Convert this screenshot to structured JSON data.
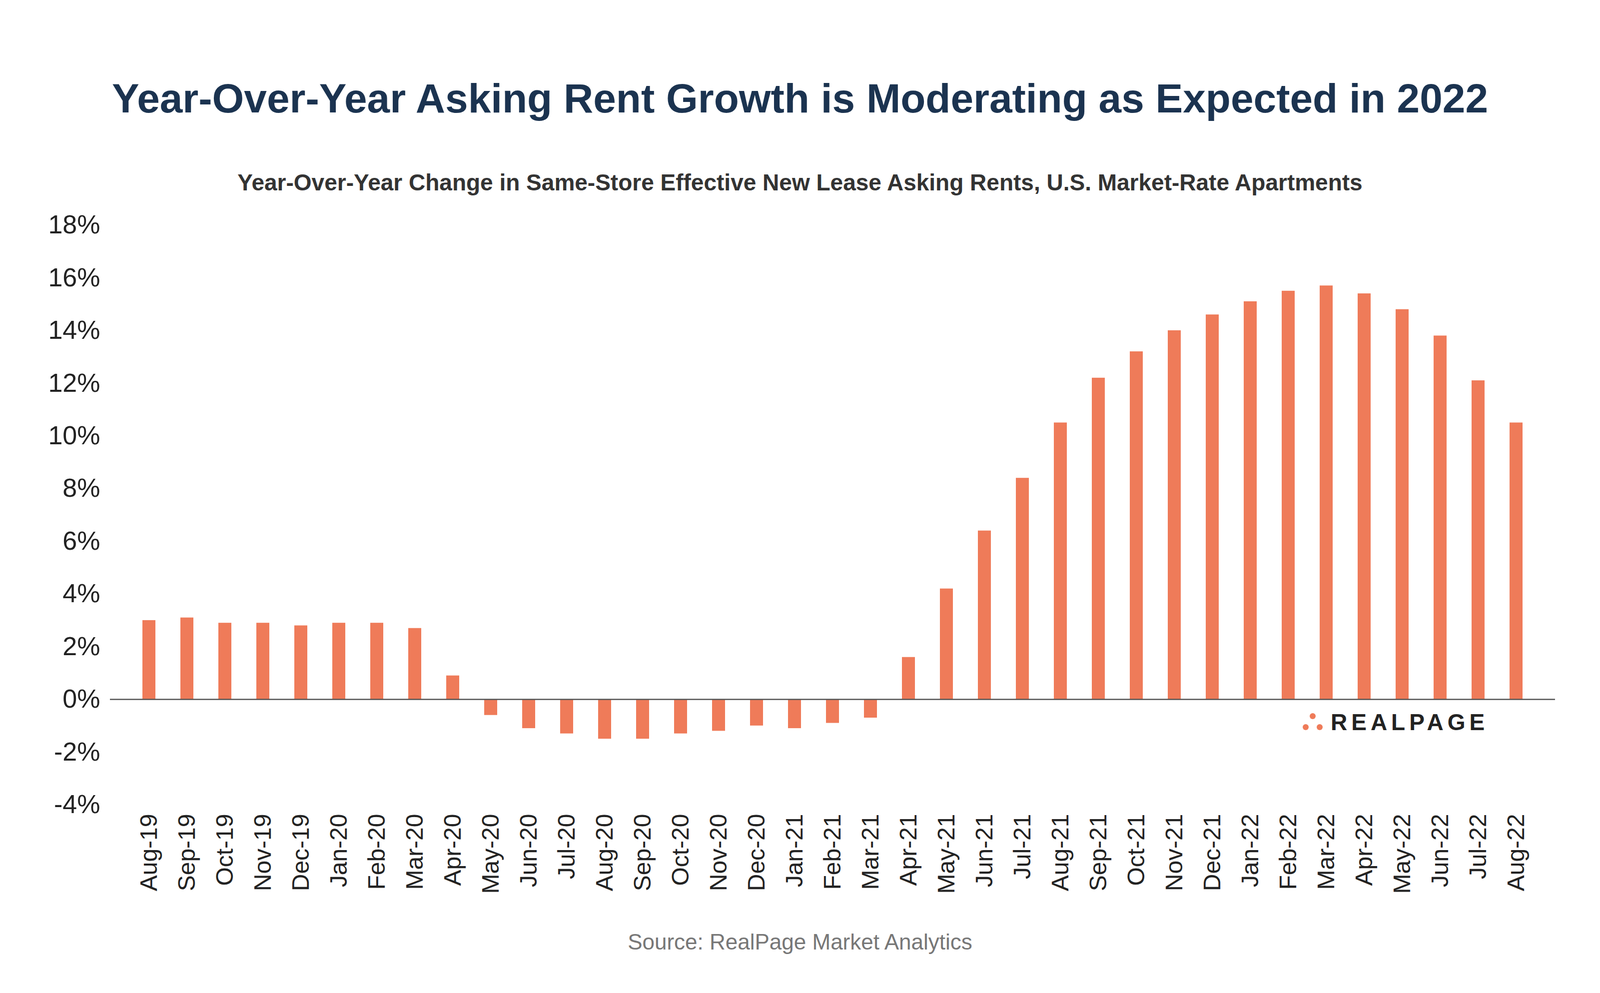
{
  "chart_data": {
    "type": "bar",
    "title": "Year-Over-Year Asking Rent Growth is Moderating as Expected in 2022",
    "subtitle": "Year-Over-Year Change in Same-Store Effective New Lease Asking Rents, U.S. Market-Rate Apartments",
    "source": "Source: RealPage Market Analytics",
    "annotations": [
      "REALPAGE"
    ],
    "categories": [
      "Aug-19",
      "Sep-19",
      "Oct-19",
      "Nov-19",
      "Dec-19",
      "Jan-20",
      "Feb-20",
      "Mar-20",
      "Apr-20",
      "May-20",
      "Jun-20",
      "Jul-20",
      "Aug-20",
      "Sep-20",
      "Oct-20",
      "Nov-20",
      "Dec-20",
      "Jan-21",
      "Feb-21",
      "Mar-21",
      "Apr-21",
      "May-21",
      "Jun-21",
      "Jul-21",
      "Aug-21",
      "Sep-21",
      "Oct-21",
      "Nov-21",
      "Dec-21",
      "Jan-22",
      "Feb-22",
      "Mar-22",
      "Apr-22",
      "May-22",
      "Jun-22",
      "Jul-22",
      "Aug-22"
    ],
    "values": [
      3.0,
      3.1,
      2.9,
      2.9,
      2.8,
      2.9,
      2.9,
      2.7,
      0.9,
      -0.6,
      -1.1,
      -1.3,
      -1.5,
      -1.5,
      -1.3,
      -1.2,
      -1.0,
      -1.1,
      -0.9,
      -0.7,
      1.6,
      4.2,
      6.4,
      8.4,
      10.5,
      12.2,
      13.2,
      14.0,
      14.6,
      15.1,
      15.5,
      15.7,
      15.4,
      14.8,
      13.8,
      12.1,
      10.5
    ],
    "color": "#ef7b59",
    "ylim": [
      -4,
      18
    ],
    "yticks": [
      {
        "value": -4,
        "label": "-4%"
      },
      {
        "value": -2,
        "label": "-2%"
      },
      {
        "value": 0,
        "label": "0%"
      },
      {
        "value": 2,
        "label": "2%"
      },
      {
        "value": 4,
        "label": "4%"
      },
      {
        "value": 6,
        "label": "6%"
      },
      {
        "value": 8,
        "label": "8%"
      },
      {
        "value": 10,
        "label": "10%"
      },
      {
        "value": 12,
        "label": "12%"
      },
      {
        "value": 14,
        "label": "14%"
      },
      {
        "value": 16,
        "label": "16%"
      },
      {
        "value": 18,
        "label": "18%"
      }
    ],
    "grid": false
  }
}
